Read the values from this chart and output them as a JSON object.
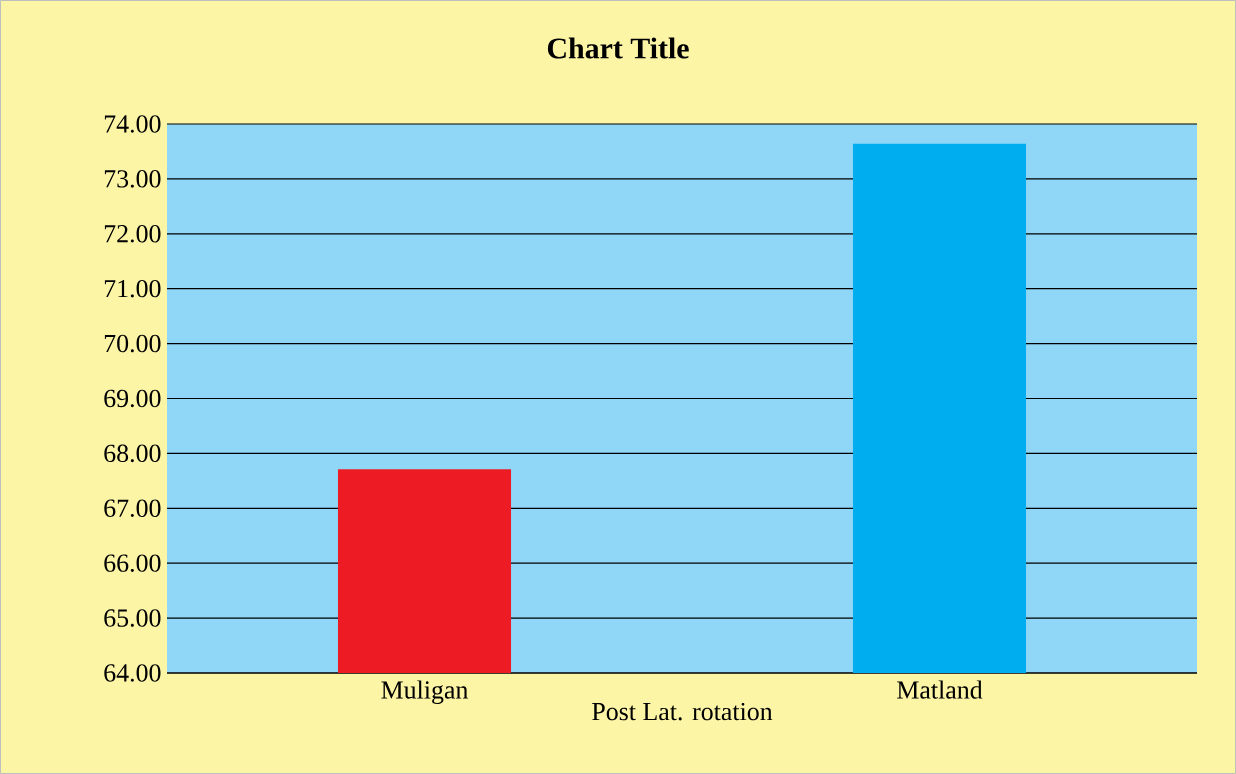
{
  "chart_data": {
    "type": "bar",
    "title": "Chart Title",
    "xlabel": "Post Lat. rotation",
    "categories": [
      "Muligan",
      "Matland"
    ],
    "values": [
      67.71,
      73.64
    ],
    "colors": [
      "#ed1c24",
      "#00aeef"
    ],
    "ylim": [
      64,
      74
    ],
    "yticks": [
      {
        "value": 64,
        "label": "64.00"
      },
      {
        "value": 65,
        "label": "65.00"
      },
      {
        "value": 66,
        "label": "66.00"
      },
      {
        "value": 67,
        "label": "67.00"
      },
      {
        "value": 68,
        "label": "68.00"
      },
      {
        "value": 69,
        "label": "69.00"
      },
      {
        "value": 70,
        "label": "70.00"
      },
      {
        "value": 71,
        "label": "71.00"
      },
      {
        "value": 72,
        "label": "72.00"
      },
      {
        "value": 73,
        "label": "73.00"
      },
      {
        "value": 74,
        "label": "74.00"
      }
    ],
    "grid": "y"
  }
}
